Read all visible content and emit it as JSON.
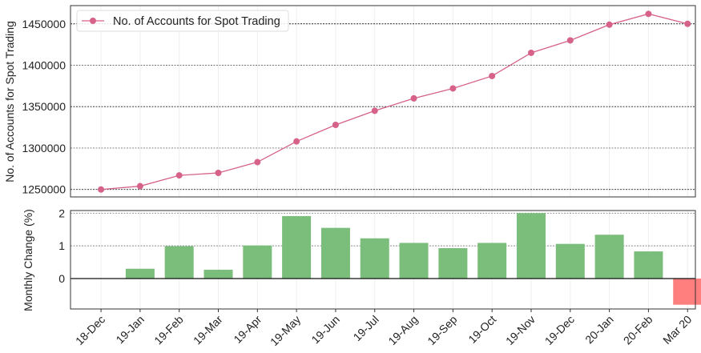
{
  "chart_data": [
    {
      "type": "line",
      "title": "",
      "xlabel": "",
      "ylabel": "No. of Accounts for Spot Trading",
      "categories": [
        "18-Dec",
        "19-Jan",
        "19-Feb",
        "19-Mar",
        "19-Apr",
        "19-May",
        "19-Jun",
        "19-Jul",
        "19-Aug",
        "19-Sep",
        "19-Oct",
        "19-Nov",
        "19-Dec",
        "20-Jan",
        "20-Feb",
        "Mar 20"
      ],
      "series": [
        {
          "name": "No. of Accounts for Spot Trading",
          "color": "#d6628a",
          "values": [
            1250000,
            1254000,
            1267000,
            1270000,
            1283000,
            1308000,
            1328000,
            1345000,
            1360000,
            1372000,
            1387000,
            1415000,
            1430000,
            1449000,
            1462000,
            1450000
          ]
        }
      ],
      "yticks": [
        1250000,
        1300000,
        1350000,
        1400000,
        1450000
      ],
      "ylim": [
        1241000,
        1472000
      ],
      "grid": true,
      "legend": "top-left"
    },
    {
      "type": "bar",
      "title": "",
      "xlabel": "",
      "ylabel": "Monthly Change (%)",
      "categories": [
        "18-Dec",
        "19-Jan",
        "19-Feb",
        "19-Mar",
        "19-Apr",
        "19-May",
        "19-Jun",
        "19-Jul",
        "19-Aug",
        "19-Sep",
        "19-Oct",
        "19-Nov",
        "19-Dec",
        "20-Jan",
        "20-Feb",
        "Mar 20"
      ],
      "values": [
        null,
        0.3,
        0.99,
        0.27,
        1.01,
        1.91,
        1.55,
        1.23,
        1.09,
        0.93,
        1.09,
        2.0,
        1.06,
        1.34,
        0.83,
        -0.8
      ],
      "positive_color": "#7bbd7b",
      "negative_color": "#ff7f7f",
      "yticks": [
        0,
        1,
        2
      ],
      "ylim": [
        -0.93,
        2.08
      ],
      "grid": true
    }
  ]
}
